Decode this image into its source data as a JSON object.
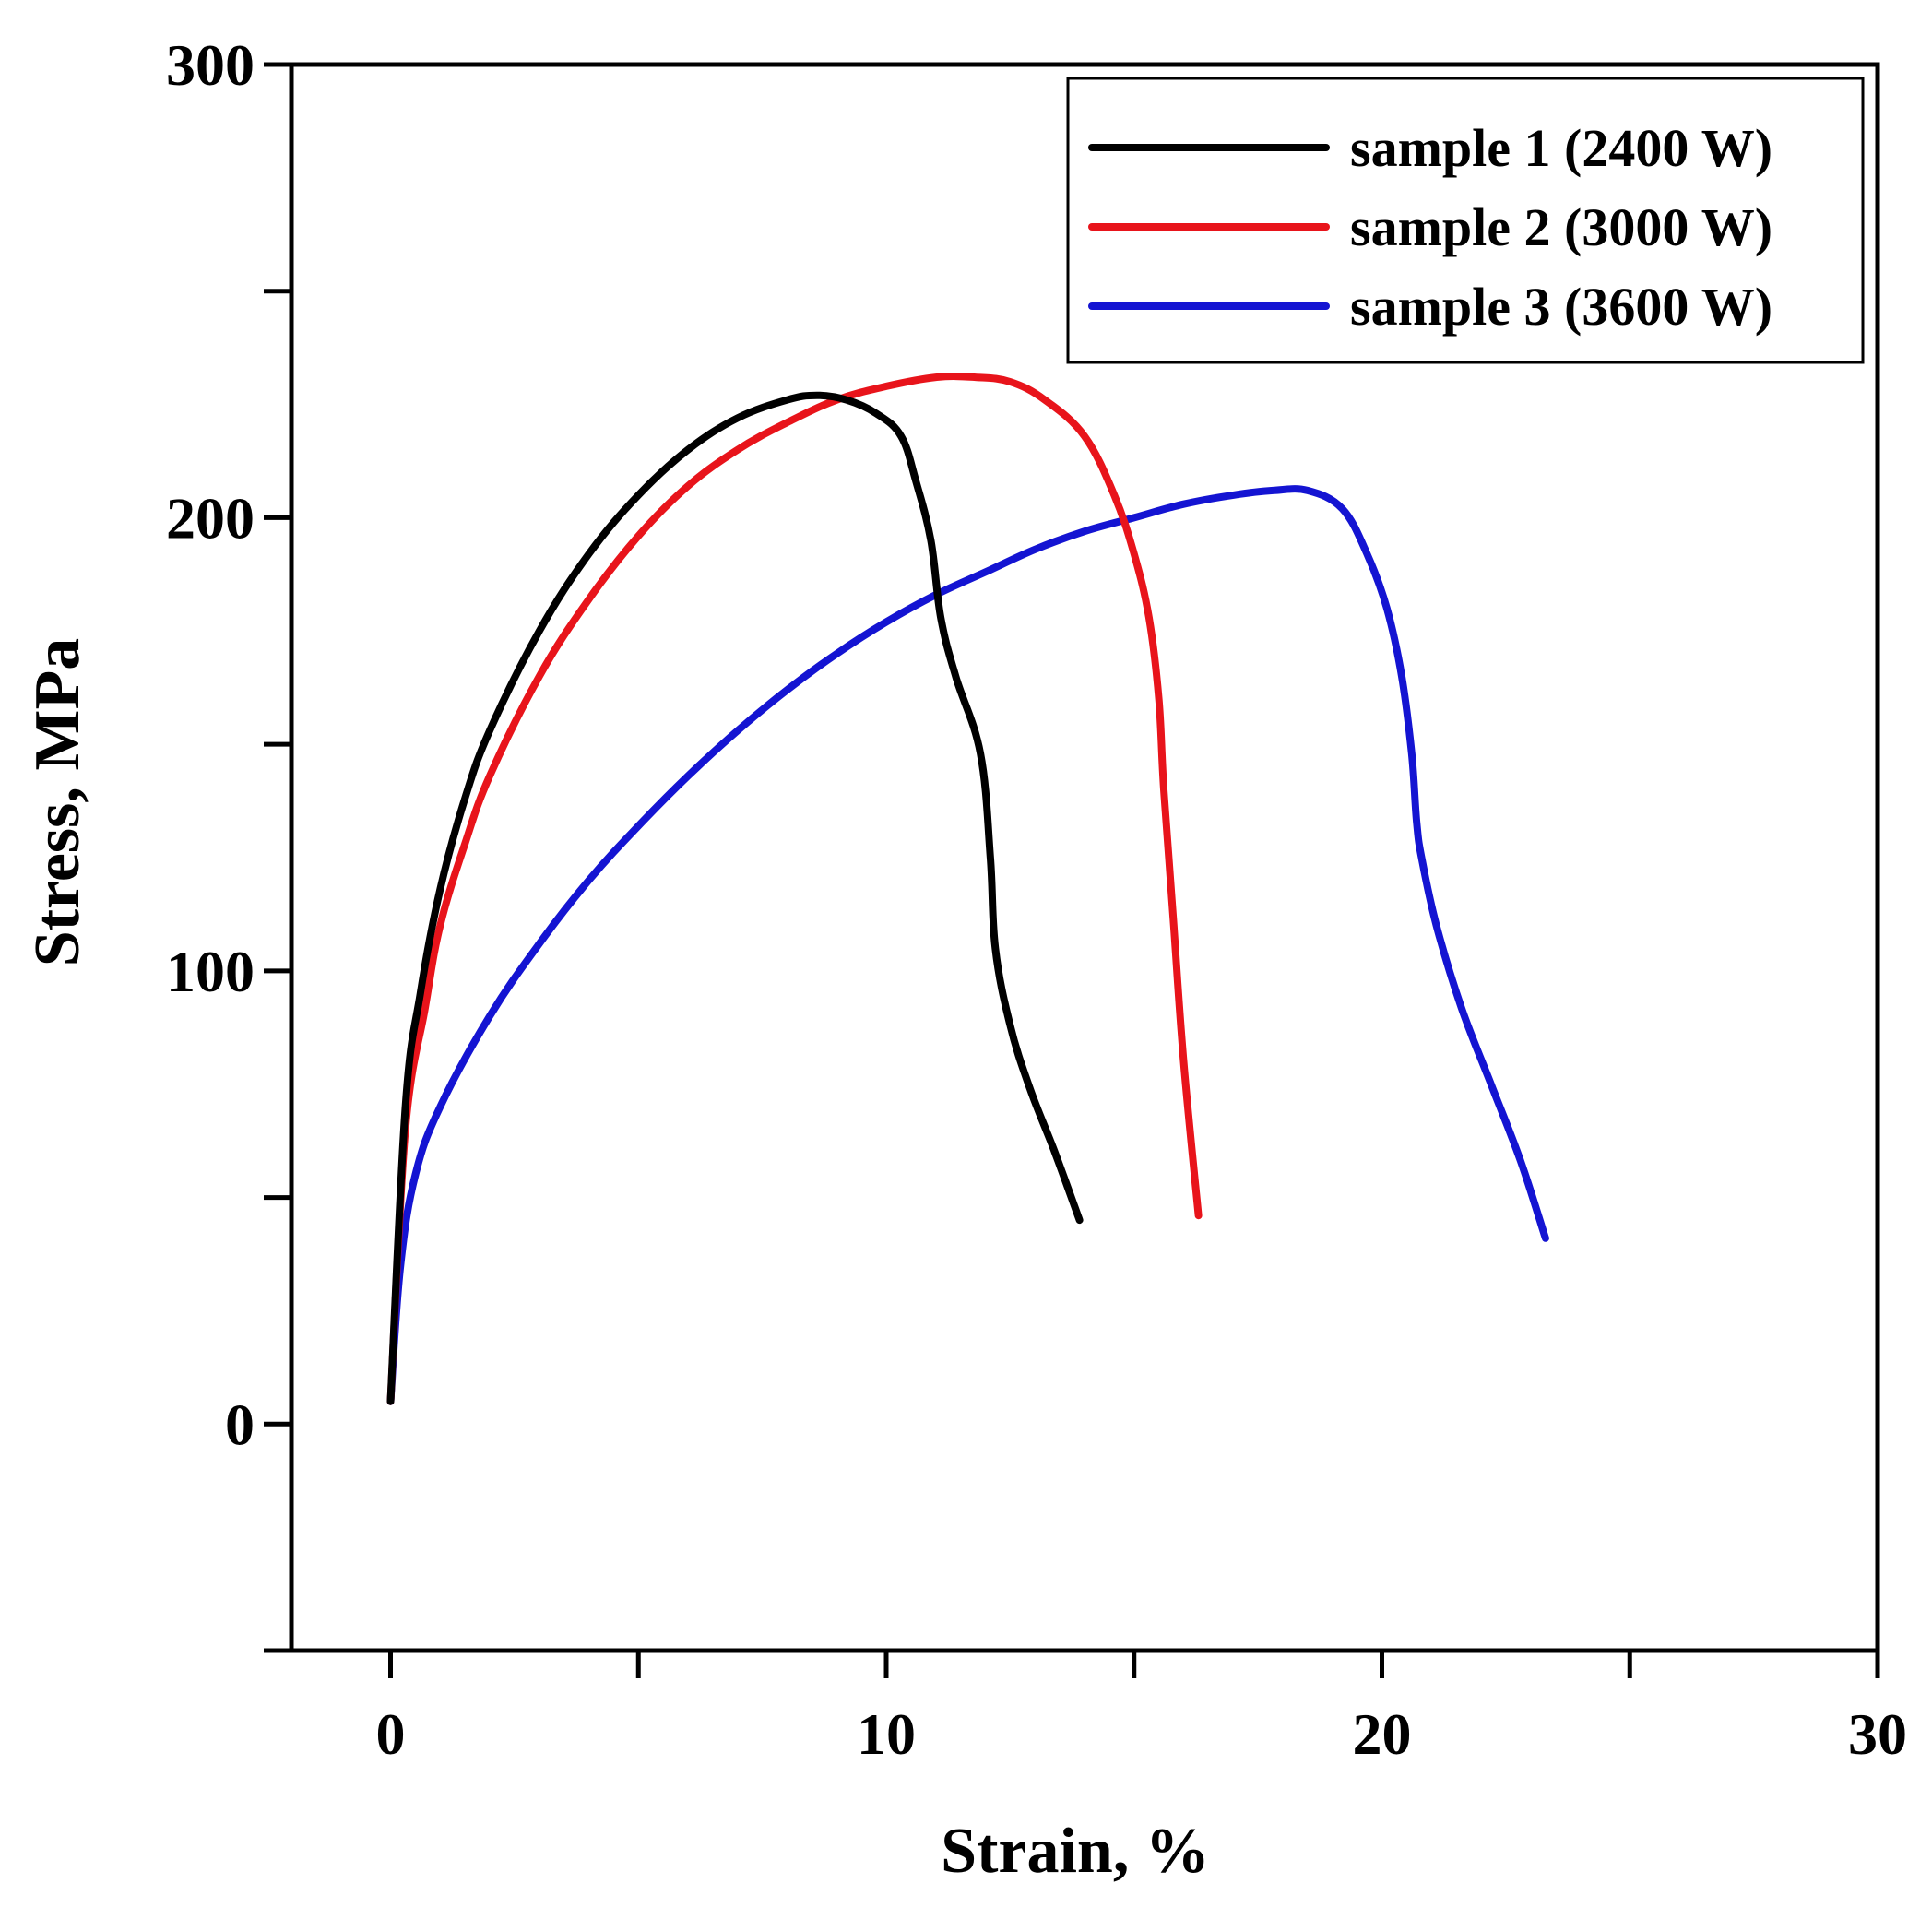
{
  "chart_data": {
    "type": "line",
    "title": "",
    "xlabel": "Strain, %",
    "ylabel": "Stress, MPa",
    "xlim": [
      -2,
      30
    ],
    "ylim": [
      -50,
      300
    ],
    "xticks": [
      0,
      10,
      20,
      30
    ],
    "xminor": [
      5,
      15,
      25
    ],
    "yticks": [
      0,
      100,
      200,
      300
    ],
    "yminor": [
      -50,
      50,
      150,
      250
    ],
    "grid": false,
    "legend_position": "top-right",
    "series": [
      {
        "name": "sample 1 (2400 W)",
        "color": "#000000",
        "x": [
          0.0,
          0.3,
          0.6,
          1.0,
          1.5,
          2.0,
          3.0,
          4.0,
          5.0,
          6.0,
          7.0,
          8.0,
          8.6,
          9.2,
          9.8,
          10.3,
          10.6,
          10.9,
          11.1,
          11.4,
          11.9,
          12.1,
          12.2,
          12.5,
          12.9,
          13.4,
          13.9
        ],
        "y": [
          5,
          70,
          95,
          118,
          138,
          153,
          175,
          192,
          205,
          215,
          222,
          226,
          227,
          226,
          223,
          218,
          208,
          195,
          178,
          165,
          148,
          125,
          105,
          88,
          74,
          60,
          45
        ]
      },
      {
        "name": "sample 2 (3000 W)",
        "color": "#e8141b",
        "x": [
          0.0,
          0.3,
          0.7,
          1.0,
          1.5,
          2.0,
          3.0,
          4.0,
          5.0,
          6.0,
          7.0,
          8.0,
          9.0,
          10.0,
          11.0,
          11.8,
          12.5,
          13.2,
          14.0,
          14.6,
          15.0,
          15.3,
          15.5,
          15.6,
          15.8,
          16.0,
          16.3
        ],
        "y": [
          5,
          65,
          92,
          110,
          128,
          143,
          165,
          182,
          196,
          207,
          215,
          221,
          226,
          229,
          231,
          231,
          230,
          226,
          218,
          205,
          192,
          178,
          160,
          140,
          110,
          80,
          46
        ]
      },
      {
        "name": "sample 3 (3600 W)",
        "color": "#1414d2",
        "x": [
          0.0,
          0.2,
          0.5,
          1.0,
          2.0,
          3.0,
          4.0,
          5.0,
          6.0,
          7.0,
          8.0,
          9.0,
          10.0,
          11.0,
          12.0,
          13.0,
          14.0,
          15.0,
          16.0,
          17.0,
          17.8,
          18.5,
          19.2,
          19.7,
          20.1,
          20.4,
          20.6,
          20.7,
          20.8,
          21.1,
          21.6,
          22.2,
          22.8,
          23.3
        ],
        "y": [
          5,
          35,
          55,
          70,
          90,
          106,
          120,
          132,
          143,
          153,
          162,
          170,
          177,
          183,
          188,
          193,
          197,
          200,
          203,
          205,
          206,
          206,
          202,
          192,
          180,
          165,
          148,
          133,
          125,
          110,
          92,
          75,
          58,
          41
        ]
      }
    ]
  }
}
